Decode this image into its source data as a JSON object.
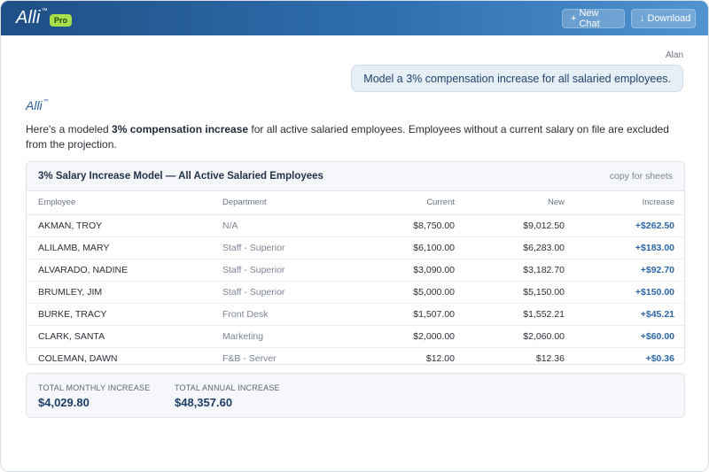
{
  "header": {
    "logo_text": "Alli",
    "logo_tm": "™",
    "pro_badge": "Pro",
    "new_chat_label": "New Chat",
    "new_chat_icon": "plus-icon",
    "download_label": "Download",
    "download_icon": "download-arrow-icon",
    "gradient_colors": [
      "#1f4f86",
      "#2f6fb0",
      "#4f93d0"
    ]
  },
  "user_message": {
    "author": "Alan",
    "text": "Model a 3% compensation increase for all salaried employees."
  },
  "assistant": {
    "name": "Alli",
    "name_tm": "™",
    "intro_before": "Here's a modeled ",
    "intro_bold": "3% compensation increase",
    "intro_after": " for all active salaried employees. Employees without a current salary on file are excluded from the projection."
  },
  "table": {
    "title": "3% Salary Increase Model — All Active Salaried Employees",
    "copy_label": "copy for sheets",
    "columns": [
      "Employee",
      "Department",
      "Current",
      "New",
      "Increase"
    ],
    "rows": [
      [
        "AKMAN, TROY",
        "N/A",
        "$8,750.00",
        "$9,012.50",
        "+$262.50"
      ],
      [
        "ALILAMB, MARY",
        "Staff - Superior",
        "$6,100.00",
        "$6,283.00",
        "+$183.00"
      ],
      [
        "ALVARADO, NADINE",
        "Staff - Superior",
        "$3,090.00",
        "$3,182.70",
        "+$92.70"
      ],
      [
        "BRUMLEY, JIM",
        "Staff - Superior",
        "$5,000.00",
        "$5,150.00",
        "+$150.00"
      ],
      [
        "BURKE, TRACY",
        "Front Desk",
        "$1,507.00",
        "$1,552.21",
        "+$45.21"
      ],
      [
        "CLARK, SANTA",
        "Marketing",
        "$2,000.00",
        "$2,060.00",
        "+$60.00"
      ],
      [
        "COLEMAN, DAWN",
        "F&B - Server",
        "$12.00",
        "$12.36",
        "+$0.36"
      ]
    ]
  },
  "totals": {
    "monthly_label": "TOTAL MONTHLY INCREASE",
    "monthly_value": "$4,029.80",
    "annual_label": "TOTAL ANNUAL INCREASE",
    "annual_value": "$48,357.60"
  },
  "colors": {
    "accent": "#2b66a8",
    "pro_badge": "#a7e04a",
    "user_bubble": "#e6eef6"
  }
}
